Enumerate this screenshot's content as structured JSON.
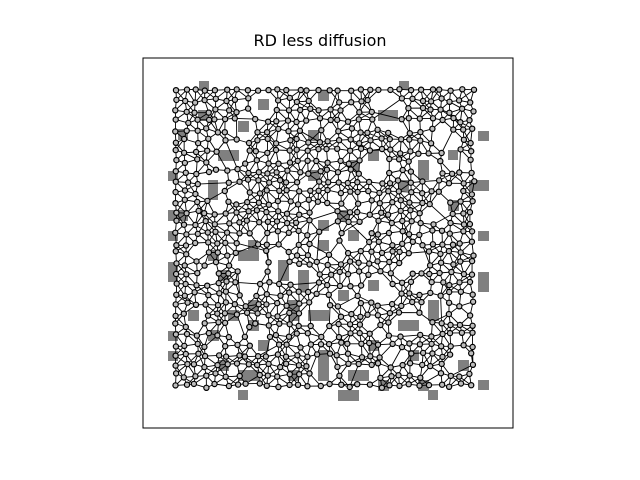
{
  "figure": {
    "title": "RD less diffusion"
  },
  "style": {
    "background": "#ffffff",
    "frame_color": "#000000",
    "edge_color": "#000000",
    "node_fill": "#bdbdbd",
    "node_stroke": "#000000",
    "block_fill": "#808080"
  },
  "chart_data": {
    "type": "scatter",
    "title": "RD less diffusion",
    "xlabel": "",
    "ylabel": "",
    "axes_visible": false,
    "grid": false,
    "description_of_marks": "dense triangulated mesh of small circular nodes connected by black edges, with scattered grey rectangular blocks filling holes and the border"
  }
}
